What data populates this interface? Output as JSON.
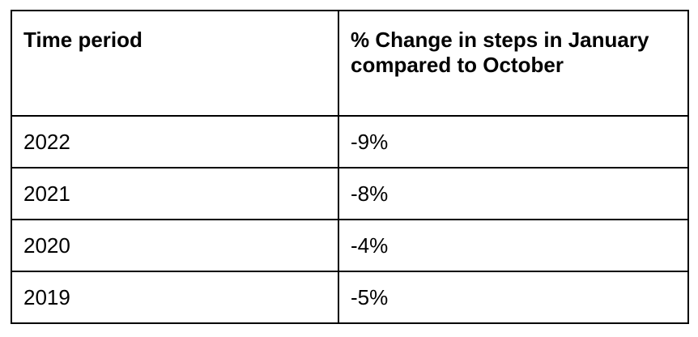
{
  "table": {
    "headers": [
      "Time period",
      "% Change in steps in January compared to October"
    ],
    "rows": [
      [
        "2022",
        "-9%"
      ],
      [
        "2021",
        "-8%"
      ],
      [
        "2020",
        "-4%"
      ],
      [
        "2019",
        "-5%"
      ]
    ]
  }
}
